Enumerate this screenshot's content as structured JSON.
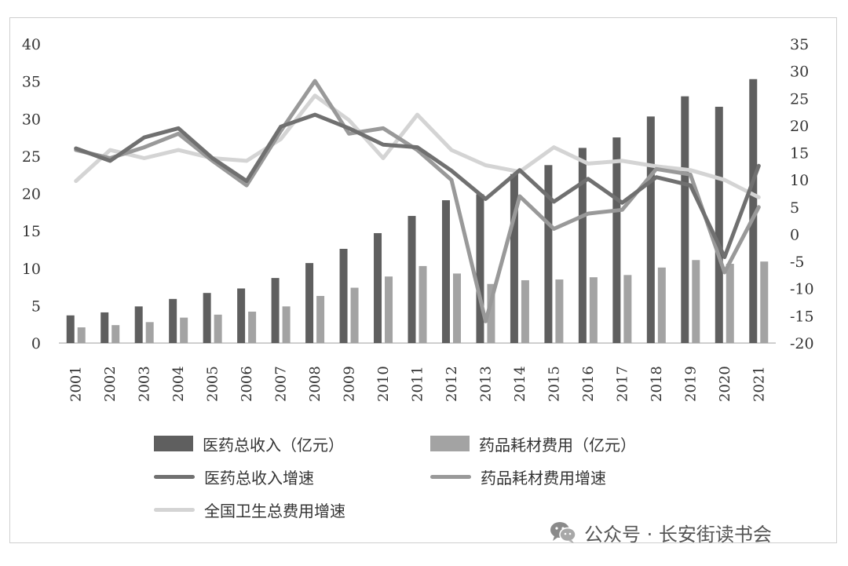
{
  "chart_data": {
    "type": "bar+line",
    "categories": [
      "2001",
      "2002",
      "2003",
      "2004",
      "2005",
      "2006",
      "2007",
      "2008",
      "2009",
      "2010",
      "2011",
      "2012",
      "2013",
      "2014",
      "2015",
      "2016",
      "2017",
      "2018",
      "2019",
      "2020",
      "2021"
    ],
    "left_axis": {
      "ylim": [
        0,
        40
      ],
      "ticks": [
        "0",
        "5",
        "10",
        "15",
        "20",
        "25",
        "30",
        "35",
        "40"
      ]
    },
    "right_axis": {
      "ylim": [
        -20,
        35
      ],
      "ticks": [
        "-20",
        "-15",
        "-10",
        "-5",
        "0",
        "5",
        "10",
        "15",
        "20",
        "25",
        "30",
        "35"
      ]
    },
    "series": [
      {
        "name": "医药总收入（亿元）",
        "kind": "bar",
        "axis": "left",
        "color": "#5f5f5f",
        "values": [
          3.7,
          4.1,
          4.9,
          5.9,
          6.7,
          7.3,
          8.7,
          10.7,
          12.6,
          14.7,
          17.0,
          19.1,
          19.9,
          22.6,
          23.8,
          26.1,
          27.5,
          30.3,
          33.0,
          31.6,
          35.3
        ]
      },
      {
        "name": "药品耗材费用（亿元）",
        "kind": "bar",
        "axis": "left",
        "color": "#a3a3a3",
        "values": [
          2.1,
          2.4,
          2.8,
          3.4,
          3.8,
          4.2,
          4.9,
          6.3,
          7.4,
          8.9,
          10.3,
          9.3,
          7.9,
          8.4,
          8.5,
          8.8,
          9.1,
          10.1,
          11.1,
          10.6,
          10.9
        ]
      },
      {
        "name": "医药总收入增速",
        "kind": "line",
        "axis": "right",
        "color": "#707070",
        "values": [
          15.8,
          13.5,
          17.8,
          19.5,
          14.0,
          9.8,
          19.8,
          22.0,
          19.5,
          16.5,
          16.0,
          11.7,
          6.5,
          11.8,
          6.0,
          10.2,
          5.8,
          10.5,
          9.0,
          -4.2,
          12.6
        ]
      },
      {
        "name": "药品耗材费用增速",
        "kind": "line",
        "axis": "right",
        "color": "#999999",
        "values": [
          15.5,
          14.0,
          16.0,
          18.5,
          13.5,
          9.0,
          19.0,
          28.2,
          18.5,
          19.5,
          15.5,
          10.0,
          -16.0,
          7.0,
          1.0,
          3.8,
          4.5,
          12.0,
          11.0,
          -7.0,
          5.0
        ]
      },
      {
        "name": "全国卫生总费用增速",
        "kind": "line",
        "axis": "right",
        "color": "#d4d4d4",
        "values": [
          9.8,
          15.5,
          14.0,
          15.5,
          14.0,
          13.5,
          17.5,
          25.5,
          21.0,
          14.0,
          22.0,
          15.5,
          12.7,
          11.5,
          16.0,
          13.0,
          13.5,
          12.5,
          11.8,
          10.0,
          6.8
        ]
      }
    ],
    "legend_position": "bottom"
  },
  "watermark": {
    "text": "公众号 · 长安街读书会",
    "icon": "wechat-icon"
  }
}
